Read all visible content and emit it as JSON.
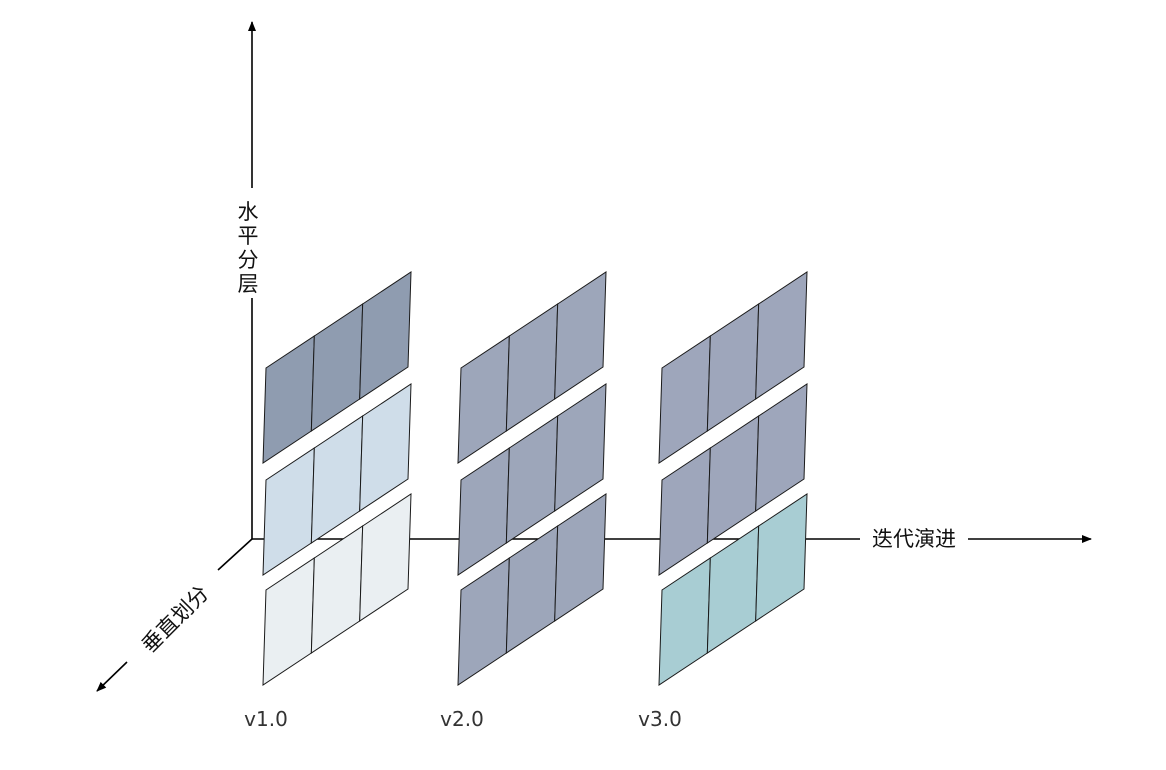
{
  "axes": {
    "vertical_label": [
      "水",
      "平",
      "分",
      "层"
    ],
    "horizontal_label": "迭代演进",
    "depth_label": "垂直划分"
  },
  "versions": [
    {
      "label": "v1.0",
      "layer_colors": [
        "#8f9cb0",
        "#cfdde9",
        "#eaeff2"
      ]
    },
    {
      "label": "v2.0",
      "layer_colors": [
        "#9da6ba",
        "#9da6ba",
        "#9da6ba"
      ]
    },
    {
      "label": "v3.0",
      "layer_colors": [
        "#9ea6bb",
        "#9ea6bb",
        "#a8cdd3"
      ]
    }
  ]
}
